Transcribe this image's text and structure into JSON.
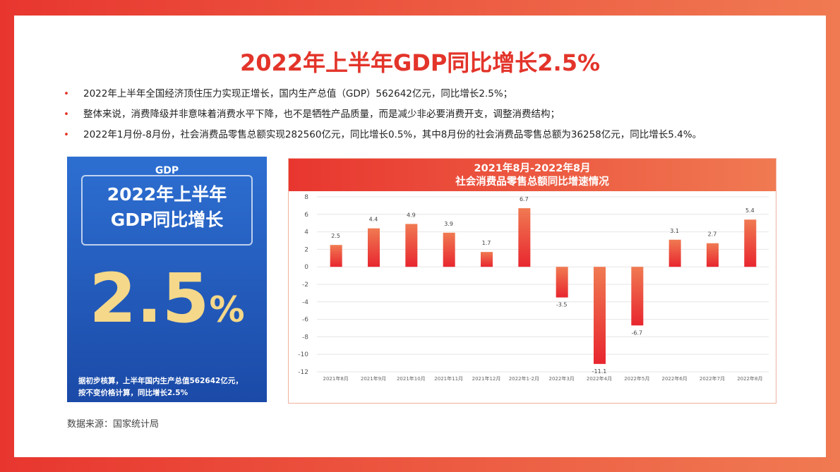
{
  "title": "2022年上半年GDP同比增长2.5%",
  "bullets": [
    "2022年上半年全国经济顶住压力实现正增长，国内生产总值（GDP）562642亿元，同比增长2.5%；",
    "整体来说，消费降级并非意味着消费水平下降，也不是牺牲产品质量，而是减少非必要消费开支，调整消费结构；",
    "2022年1月份-8月份，社会消费品零售总额实现282560亿元，同比增长0.5%，其中8月份的社会消费品零售总额为36258亿元，同比增长5.4%。"
  ],
  "card": {
    "logo": "GDP",
    "line1": "2022年上半年",
    "line2": "GDP同比增长",
    "value": "2.5",
    "unit": "%",
    "note1": "据初步核算，上半年国内生产总值562642亿元，",
    "note2": "按不变价格计算，同比增长2.5%"
  },
  "source": "数据来源：国家统计局",
  "colors": {
    "accent": "#e3342a",
    "card": "#1f56b5",
    "bar": "#e8262f"
  },
  "chart_data": {
    "type": "bar",
    "title": "2021年8月-2022年8月",
    "subtitle": "社会消费品零售总额同比增速情况",
    "categories": [
      "2021年8月",
      "2021年9月",
      "2021年10月",
      "2021年11月",
      "2021年12月",
      "2022年1-2月",
      "2022年3月",
      "2022年4月",
      "2022年5月",
      "2022年6月",
      "2022年7月",
      "2022年8月"
    ],
    "values": [
      2.5,
      4.4,
      4.9,
      3.9,
      1.7,
      6.7,
      -3.5,
      -11.1,
      -6.7,
      3.1,
      2.7,
      5.4
    ],
    "ylim": [
      -12,
      8
    ],
    "yticks": [
      8,
      6,
      4,
      2,
      0,
      -2,
      -4,
      -6,
      -8,
      -10,
      -12
    ],
    "grid": true
  }
}
